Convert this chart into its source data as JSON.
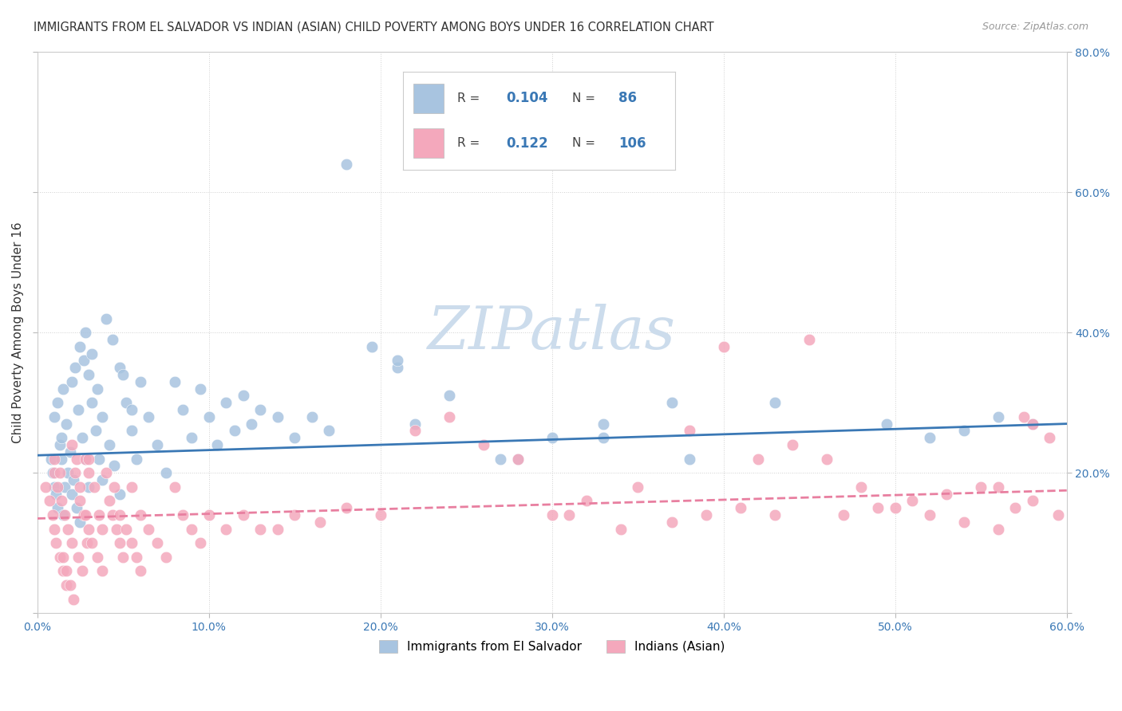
{
  "title": "IMMIGRANTS FROM EL SALVADOR VS INDIAN (ASIAN) CHILD POVERTY AMONG BOYS UNDER 16 CORRELATION CHART",
  "source": "Source: ZipAtlas.com",
  "ylabel": "Child Poverty Among Boys Under 16",
  "xlim": [
    0.0,
    0.6
  ],
  "ylim": [
    0.0,
    0.8
  ],
  "legend1_R": "0.104",
  "legend1_N": "86",
  "legend2_R": "0.122",
  "legend2_N": "106",
  "blue_color": "#a8c4e0",
  "pink_color": "#f4a8bc",
  "blue_line_color": "#3a78b5",
  "pink_line_color": "#e87fa0",
  "watermark_color": "#ccdcec",
  "background_color": "#ffffff",
  "legend_label1": "Immigrants from El Salvador",
  "legend_label2": "Indians (Asian)",
  "blue_x": [
    0.008,
    0.009,
    0.01,
    0.011,
    0.012,
    0.013,
    0.014,
    0.015,
    0.01,
    0.012,
    0.014,
    0.016,
    0.018,
    0.02,
    0.015,
    0.017,
    0.019,
    0.021,
    0.023,
    0.025,
    0.02,
    0.022,
    0.024,
    0.026,
    0.028,
    0.03,
    0.025,
    0.027,
    0.03,
    0.032,
    0.034,
    0.036,
    0.038,
    0.028,
    0.032,
    0.035,
    0.038,
    0.042,
    0.045,
    0.048,
    0.04,
    0.044,
    0.048,
    0.052,
    0.055,
    0.058,
    0.05,
    0.055,
    0.06,
    0.065,
    0.07,
    0.075,
    0.08,
    0.085,
    0.09,
    0.095,
    0.1,
    0.105,
    0.11,
    0.115,
    0.12,
    0.125,
    0.13,
    0.14,
    0.15,
    0.16,
    0.17,
    0.18,
    0.195,
    0.21,
    0.22,
    0.24,
    0.27,
    0.28,
    0.3,
    0.33,
    0.37,
    0.38,
    0.43,
    0.495,
    0.52,
    0.54,
    0.56,
    0.58,
    0.21,
    0.33
  ],
  "blue_y": [
    0.22,
    0.2,
    0.18,
    0.17,
    0.15,
    0.24,
    0.25,
    0.14,
    0.28,
    0.3,
    0.22,
    0.18,
    0.2,
    0.17,
    0.32,
    0.27,
    0.23,
    0.19,
    0.15,
    0.13,
    0.33,
    0.35,
    0.29,
    0.25,
    0.22,
    0.18,
    0.38,
    0.36,
    0.34,
    0.3,
    0.26,
    0.22,
    0.19,
    0.4,
    0.37,
    0.32,
    0.28,
    0.24,
    0.21,
    0.17,
    0.42,
    0.39,
    0.35,
    0.3,
    0.26,
    0.22,
    0.34,
    0.29,
    0.33,
    0.28,
    0.24,
    0.2,
    0.33,
    0.29,
    0.25,
    0.32,
    0.28,
    0.24,
    0.3,
    0.26,
    0.31,
    0.27,
    0.29,
    0.28,
    0.25,
    0.28,
    0.26,
    0.64,
    0.38,
    0.35,
    0.27,
    0.31,
    0.22,
    0.22,
    0.25,
    0.27,
    0.3,
    0.22,
    0.3,
    0.27,
    0.25,
    0.26,
    0.28,
    0.27,
    0.36,
    0.25
  ],
  "pink_x": [
    0.005,
    0.007,
    0.009,
    0.01,
    0.011,
    0.013,
    0.015,
    0.017,
    0.01,
    0.012,
    0.014,
    0.01,
    0.013,
    0.016,
    0.018,
    0.02,
    0.015,
    0.017,
    0.019,
    0.021,
    0.023,
    0.02,
    0.022,
    0.025,
    0.027,
    0.029,
    0.024,
    0.026,
    0.028,
    0.03,
    0.025,
    0.028,
    0.03,
    0.032,
    0.035,
    0.038,
    0.03,
    0.033,
    0.036,
    0.038,
    0.04,
    0.042,
    0.044,
    0.046,
    0.048,
    0.05,
    0.045,
    0.048,
    0.052,
    0.055,
    0.058,
    0.06,
    0.055,
    0.06,
    0.065,
    0.07,
    0.075,
    0.08,
    0.085,
    0.09,
    0.095,
    0.1,
    0.11,
    0.12,
    0.13,
    0.14,
    0.15,
    0.165,
    0.18,
    0.2,
    0.22,
    0.24,
    0.26,
    0.28,
    0.3,
    0.32,
    0.35,
    0.38,
    0.4,
    0.42,
    0.44,
    0.46,
    0.48,
    0.5,
    0.52,
    0.54,
    0.56,
    0.575,
    0.58,
    0.59,
    0.595,
    0.57,
    0.55,
    0.53,
    0.51,
    0.49,
    0.47,
    0.45,
    0.43,
    0.41,
    0.39,
    0.37,
    0.34,
    0.31,
    0.56,
    0.58
  ],
  "pink_y": [
    0.18,
    0.16,
    0.14,
    0.12,
    0.1,
    0.08,
    0.06,
    0.04,
    0.2,
    0.18,
    0.16,
    0.22,
    0.2,
    0.14,
    0.12,
    0.1,
    0.08,
    0.06,
    0.04,
    0.02,
    0.22,
    0.24,
    0.2,
    0.18,
    0.14,
    0.1,
    0.08,
    0.06,
    0.22,
    0.2,
    0.16,
    0.14,
    0.12,
    0.1,
    0.08,
    0.06,
    0.22,
    0.18,
    0.14,
    0.12,
    0.2,
    0.16,
    0.14,
    0.12,
    0.1,
    0.08,
    0.18,
    0.14,
    0.12,
    0.1,
    0.08,
    0.06,
    0.18,
    0.14,
    0.12,
    0.1,
    0.08,
    0.18,
    0.14,
    0.12,
    0.1,
    0.14,
    0.12,
    0.14,
    0.12,
    0.12,
    0.14,
    0.13,
    0.15,
    0.14,
    0.26,
    0.28,
    0.24,
    0.22,
    0.14,
    0.16,
    0.18,
    0.26,
    0.38,
    0.22,
    0.24,
    0.22,
    0.18,
    0.15,
    0.14,
    0.13,
    0.12,
    0.28,
    0.16,
    0.25,
    0.14,
    0.15,
    0.18,
    0.17,
    0.16,
    0.15,
    0.14,
    0.39,
    0.14,
    0.15,
    0.14,
    0.13,
    0.12,
    0.14,
    0.18,
    0.27
  ]
}
